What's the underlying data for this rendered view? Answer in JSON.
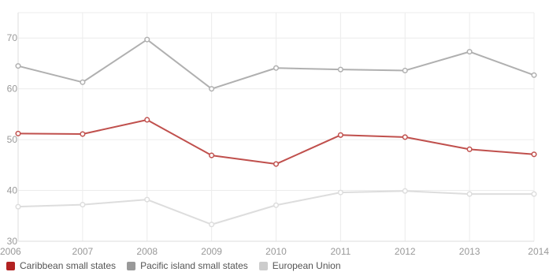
{
  "chart_data": {
    "type": "line",
    "x": [
      "2006",
      "2007",
      "2008",
      "2009",
      "2010",
      "2011",
      "2012",
      "2013",
      "2014"
    ],
    "ylim": [
      30,
      75
    ],
    "yticks": [
      "30",
      "40",
      "50",
      "60",
      "70"
    ],
    "grid": true,
    "legend_position": "bottom-left",
    "series": [
      {
        "name": "Pacific island small states",
        "color": "#b0b0b0",
        "values": [
          64.5,
          61.3,
          69.7,
          60.0,
          64.1,
          63.8,
          63.6,
          67.3,
          62.7
        ]
      },
      {
        "name": "Caribbean small states",
        "color": "#c0504d",
        "values": [
          51.2,
          51.1,
          53.9,
          46.9,
          45.2,
          50.9,
          50.5,
          48.1,
          47.1
        ]
      },
      {
        "name": "European Union",
        "color": "#dddddd",
        "values": [
          36.8,
          37.2,
          38.2,
          33.3,
          37.1,
          39.6,
          39.9,
          39.3,
          39.3
        ]
      }
    ]
  },
  "legend": [
    {
      "label": "Caribbean small states",
      "color": "#b22222"
    },
    {
      "label": "Pacific island small states",
      "color": "#999999"
    },
    {
      "label": "European Union",
      "color": "#cccccc"
    }
  ]
}
